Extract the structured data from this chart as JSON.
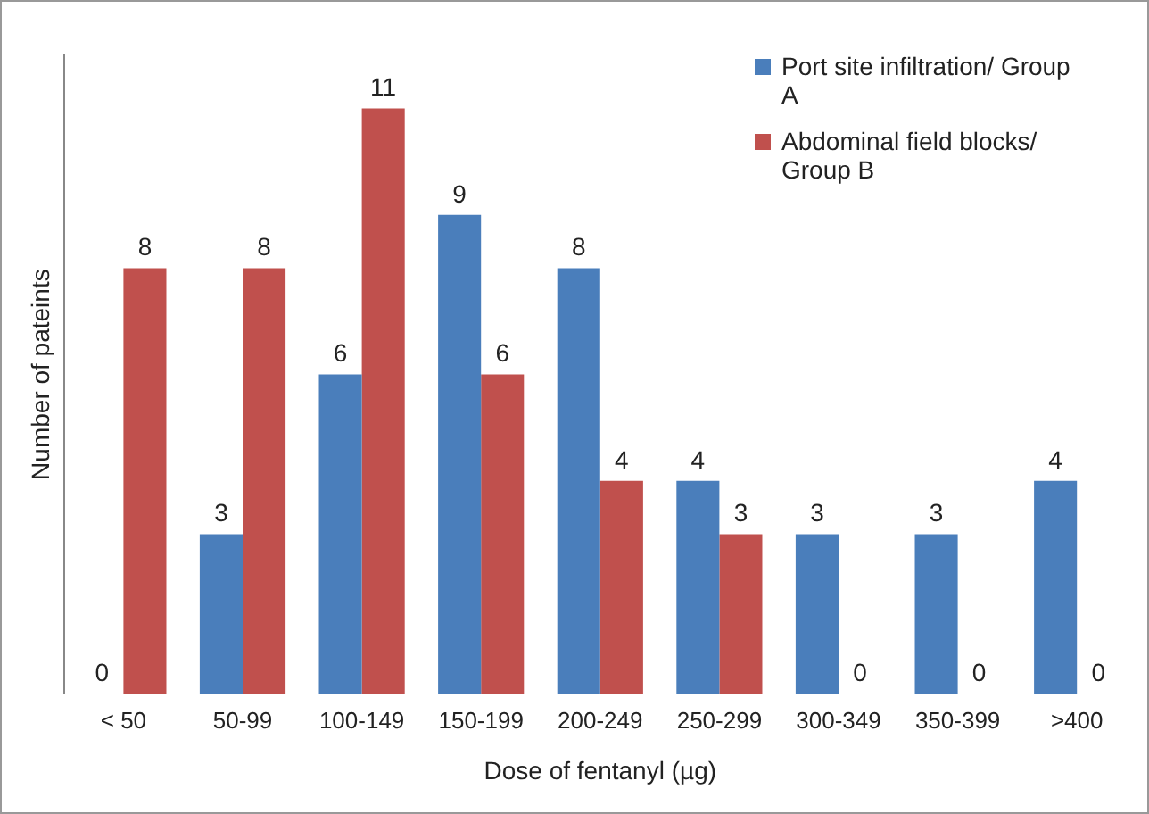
{
  "chart_data": {
    "type": "bar",
    "xlabel": "Dose of fentanyl (µg)",
    "ylabel": "Number of pateints",
    "categories": [
      "< 50",
      "50-99",
      "100-149",
      "150-199",
      "200-249",
      "250-299",
      "300-349",
      "350-399",
      ">400"
    ],
    "series": [
      {
        "name": "Port site infiltration/ Group A",
        "color": "#4a7ebb",
        "values": [
          0,
          3,
          6,
          9,
          8,
          4,
          3,
          3,
          4
        ]
      },
      {
        "name": "Abdominal field blocks/ Group B",
        "color": "#c0504d",
        "values": [
          8,
          8,
          11,
          6,
          4,
          3,
          0,
          0,
          0
        ]
      }
    ],
    "data_labels": true,
    "grid": false,
    "legend": "top right"
  }
}
